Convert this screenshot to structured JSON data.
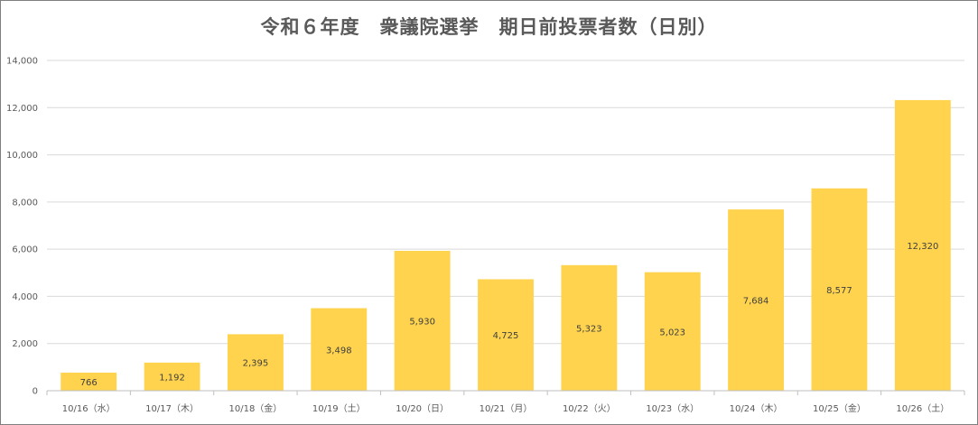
{
  "chart_data": {
    "type": "bar",
    "title": "令和６年度　衆議院選挙　期日前投票者数（日別）",
    "xlabel": "",
    "ylabel": "",
    "categories": [
      "10/16（水）",
      "10/17（木）",
      "10/18（金）",
      "10/19（土）",
      "10/20（日）",
      "10/21（月）",
      "10/22（火）",
      "10/23（水）",
      "10/24（木）",
      "10/25（金）",
      "10/26（土）"
    ],
    "values": [
      766,
      1192,
      2395,
      3498,
      5930,
      4725,
      5323,
      5023,
      7684,
      8577,
      12320
    ],
    "data_labels": [
      "766",
      "1,192",
      "2,395",
      "3,498",
      "5,930",
      "4,725",
      "5,323",
      "5,023",
      "7,684",
      "8,577",
      "12,320"
    ],
    "ylim": [
      0,
      14000
    ],
    "yticks": [
      0,
      2000,
      4000,
      6000,
      8000,
      10000,
      12000,
      14000
    ],
    "ytick_labels": [
      "0",
      "2,000",
      "4,000",
      "6,000",
      "8,000",
      "10,000",
      "12,000",
      "14,000"
    ],
    "grid": true,
    "legend": "none",
    "colors": {
      "bar": "#ffd34d",
      "grid": "#d9d9d9",
      "axis": "#bfbfbf",
      "title": "#595959",
      "text": "#595959"
    }
  }
}
